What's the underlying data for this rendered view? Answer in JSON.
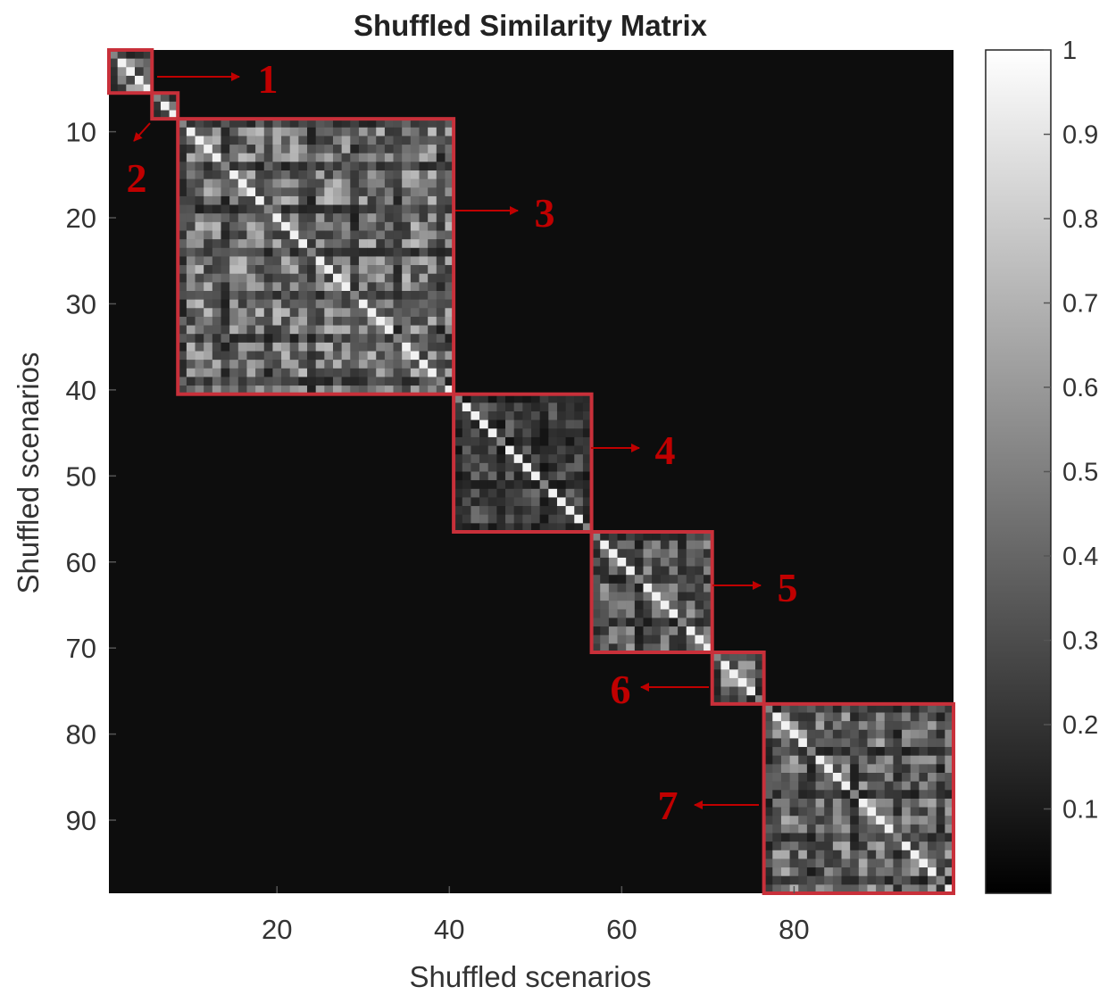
{
  "chart_data": {
    "type": "heatmap",
    "title": "Shuffled Similarity Matrix",
    "xlabel": "Shuffled scenarios",
    "ylabel": "Shuffled scenarios",
    "xlim": [
      0.5,
      98.5
    ],
    "ylim": [
      0.5,
      98.5
    ],
    "xticks": [
      20,
      40,
      60,
      80
    ],
    "yticks": [
      10,
      20,
      30,
      40,
      50,
      60,
      70,
      80,
      90
    ],
    "colorbar": {
      "range": [
        0,
        1
      ],
      "ticks": [
        0.1,
        0.2,
        0.3,
        0.4,
        0.5,
        0.6,
        0.7,
        0.8,
        0.9,
        1
      ]
    },
    "colormap": "gray",
    "background_value": 0.05,
    "clusters": [
      {
        "label": "1",
        "start": 1,
        "end": 5,
        "mean_similarity": 0.55
      },
      {
        "label": "2",
        "start": 6,
        "end": 8,
        "mean_similarity": 0.5
      },
      {
        "label": "3",
        "start": 9,
        "end": 40,
        "mean_similarity": 0.6
      },
      {
        "label": "4",
        "start": 41,
        "end": 56,
        "mean_similarity": 0.35
      },
      {
        "label": "5",
        "start": 57,
        "end": 70,
        "mean_similarity": 0.5
      },
      {
        "label": "6",
        "start": 71,
        "end": 76,
        "mean_similarity": 0.55
      },
      {
        "label": "7",
        "start": 77,
        "end": 98,
        "mean_similarity": 0.55
      }
    ],
    "cluster_box_color": "#c8303a",
    "annotation_color": "#c00000"
  }
}
